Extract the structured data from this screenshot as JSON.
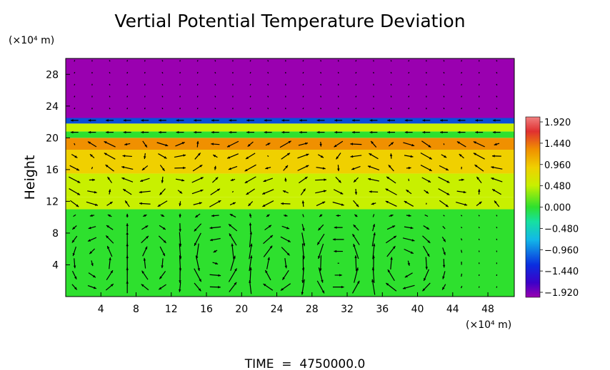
{
  "chart_data": {
    "type": "heatmap",
    "title": "Vertial Potential Temperature Deviation",
    "ylabel": "Height",
    "y_unit": "(×10⁴ m)",
    "x_unit": "(×10⁴ m)",
    "xlim": [
      0,
      51
    ],
    "ylim": [
      0,
      30
    ],
    "xticks": [
      4,
      8,
      12,
      16,
      20,
      24,
      28,
      32,
      36,
      40,
      44,
      48
    ],
    "yticks": [
      4,
      8,
      12,
      16,
      20,
      24,
      28
    ],
    "footer": "TIME  =  4750000.0",
    "colorbar": {
      "labels": [
        "1.920",
        "1.440",
        "0.960",
        "0.480",
        "0.000",
        "−0.480",
        "−0.960",
        "−1.440",
        "−1.920"
      ],
      "values": [
        1.92,
        1.44,
        0.96,
        0.48,
        0.0,
        -0.48,
        -0.96,
        -1.44,
        -1.92
      ]
    },
    "field_layers": [
      {
        "y0": 0,
        "y1": 11.0,
        "value": 0.05
      },
      {
        "y0": 11.0,
        "y1": 12.5,
        "value": 0.35
      },
      {
        "y0": 12.5,
        "y1": 15.5,
        "value": 0.55
      },
      {
        "y0": 15.5,
        "y1": 18.5,
        "value": 0.75
      },
      {
        "y0": 18.5,
        "y1": 20.0,
        "value": 1.2
      },
      {
        "y0": 20.0,
        "y1": 20.8,
        "value": 0.0
      },
      {
        "y0": 20.8,
        "y1": 21.8,
        "value": 0.3
      },
      {
        "y0": 21.8,
        "y1": 22.5,
        "value": -1.0
      },
      {
        "y0": 22.5,
        "y1": 30,
        "value": -1.92
      }
    ],
    "vortices": [
      {
        "x": 5,
        "y": 4.5,
        "rot": 1
      },
      {
        "x": 9,
        "y": 4.5,
        "rot": -1
      },
      {
        "x": 17.5,
        "y": 5,
        "rot": 1
      },
      {
        "x": 24,
        "y": 4,
        "rot": -1
      },
      {
        "x": 31,
        "y": 4,
        "rot": 1
      },
      {
        "x": 38,
        "y": 4,
        "rot": -1
      }
    ],
    "colors": {
      "field": [
        "#9a00b0",
        "#3c00c8",
        "#0a4fd8",
        "#12b8e8",
        "#16e0a0",
        "#2ee02e",
        "#c8f000",
        "#f0d000",
        "#f09000",
        "#e03030",
        "#f08080"
      ],
      "arrow": "#000000"
    }
  }
}
